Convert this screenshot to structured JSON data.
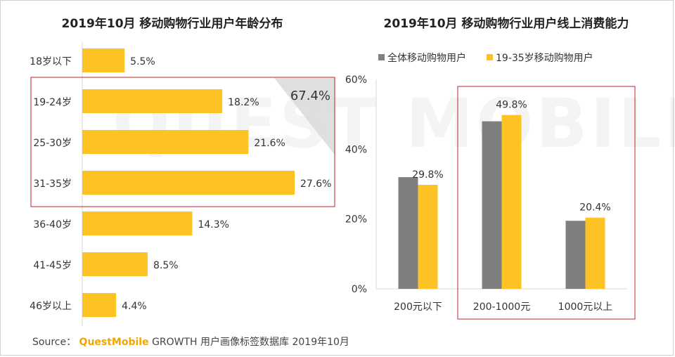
{
  "watermark": "QUEST MOBILE",
  "colors": {
    "yellow": "#FDC325",
    "gray": "#7F7F7F",
    "highlight_box": "#C0202A",
    "axis": "#D9D9D9"
  },
  "chart_data": [
    {
      "type": "bar",
      "orientation": "horizontal",
      "title": "2019年10月 移动购物行业用户年龄分布",
      "categories": [
        "18岁以下",
        "19-24岁",
        "25-30岁",
        "31-35岁",
        "36-40岁",
        "41-45岁",
        "46岁以上"
      ],
      "values": [
        5.5,
        18.2,
        21.6,
        27.6,
        14.3,
        8.5,
        4.4
      ],
      "value_labels": [
        "5.5%",
        "18.2%",
        "21.6%",
        "27.6%",
        "14.3%",
        "8.5%",
        "4.4%"
      ],
      "value_unit": "%",
      "highlight": {
        "categories": [
          "19-24岁",
          "25-30岁",
          "31-35岁"
        ],
        "total_label": "67.4%"
      }
    },
    {
      "type": "bar",
      "title": "2019年10月 移动购物行业用户线上消费能力",
      "categories": [
        "200元以下",
        "200-1000元",
        "1000元以上"
      ],
      "series": [
        {
          "name": "全体移动购物用户",
          "values": [
            32.0,
            48.0,
            19.5
          ],
          "labels": [
            "",
            "",
            ""
          ]
        },
        {
          "name": "19-35岁移动购物用户",
          "values": [
            29.8,
            49.8,
            20.4
          ],
          "labels": [
            "29.8%",
            "49.8%",
            "20.4%"
          ]
        }
      ],
      "yticks": [
        "0%",
        "20%",
        "40%",
        "60%"
      ],
      "ylim": [
        0,
        60
      ],
      "legend_position": "top",
      "highlight": {
        "categories": [
          "200-1000元",
          "1000元以上"
        ]
      }
    }
  ],
  "footer": {
    "prefix": "Source：",
    "brand": "QuestMobile",
    "rest": "GROWTH 用户画像标签数据库 2019年10月"
  }
}
